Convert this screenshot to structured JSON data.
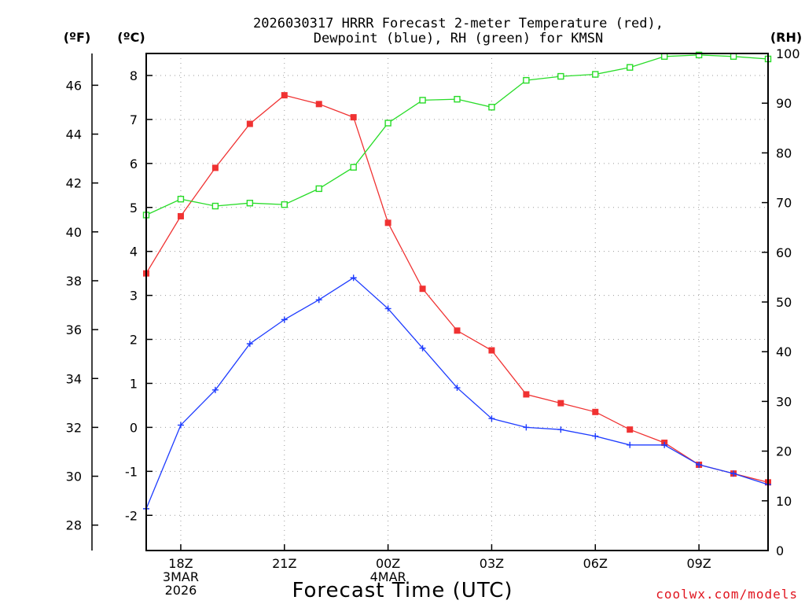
{
  "chart_data": {
    "type": "line",
    "title_line1": "2026030317 HRRR Forecast 2-meter Temperature (red),",
    "title_line2": "Dewpoint (blue), RH (green) for KMSN",
    "xlabel": "Forecast Time (UTC)",
    "credit": "coolwx.com/models",
    "units": {
      "fahrenheit": "(ºF)",
      "celsius": "(ºC)",
      "rh": "(RH)"
    },
    "x_hours": [
      17,
      18,
      19,
      20,
      21,
      22,
      23,
      24,
      25,
      26,
      27,
      28,
      29,
      30,
      31,
      32,
      33,
      34,
      35
    ],
    "xlim": [
      17,
      35
    ],
    "x_ticks": [
      {
        "hour": 18,
        "lines": [
          "18Z",
          "3MAR",
          "2026"
        ]
      },
      {
        "hour": 21,
        "lines": [
          "21Z"
        ]
      },
      {
        "hour": 24,
        "lines": [
          "00Z",
          "4MAR"
        ]
      },
      {
        "hour": 27,
        "lines": [
          "03Z"
        ]
      },
      {
        "hour": 30,
        "lines": [
          "06Z"
        ]
      },
      {
        "hour": 33,
        "lines": [
          "09Z"
        ]
      }
    ],
    "celsius_axis": {
      "lim": [
        -2.8,
        8.5
      ],
      "ticks": [
        "-2",
        "-1",
        "0",
        "1",
        "2",
        "3",
        "4",
        "5",
        "6",
        "7",
        "8"
      ]
    },
    "fahrenheit_axis": {
      "ticks": [
        "28",
        "30",
        "32",
        "34",
        "36",
        "38",
        "40",
        "42",
        "44",
        "46"
      ]
    },
    "rh_axis": {
      "lim": [
        0,
        100
      ],
      "ticks": [
        "0",
        "10",
        "20",
        "30",
        "40",
        "50",
        "60",
        "70",
        "80",
        "90",
        "100"
      ]
    },
    "series": [
      {
        "name": "Temperature",
        "axis": "celsius",
        "color": "#f03232",
        "marker": "filled-square",
        "values": [
          3.5,
          4.8,
          5.9,
          6.9,
          7.55,
          7.35,
          7.05,
          4.65,
          3.15,
          2.2,
          1.75,
          0.75,
          0.55,
          0.35,
          -0.05,
          -0.35,
          -0.85,
          -1.05,
          -1.25
        ]
      },
      {
        "name": "Dewpoint",
        "axis": "celsius",
        "color": "#1e3cff",
        "marker": "plus",
        "values": [
          -1.85,
          0.05,
          0.85,
          1.9,
          2.45,
          2.9,
          3.4,
          2.7,
          1.8,
          0.9,
          0.2,
          0.0,
          -0.05,
          -0.2,
          -0.4,
          -0.4,
          -0.85,
          -1.05,
          -1.3
        ]
      },
      {
        "name": "RH",
        "axis": "rh",
        "color": "#28dc28",
        "marker": "open-square",
        "values": [
          67.5,
          70.7,
          69.3,
          69.9,
          69.6,
          72.8,
          77.1,
          86.0,
          90.6,
          90.8,
          89.2,
          94.6,
          95.4,
          95.8,
          97.2,
          99.4,
          99.7,
          99.4,
          98.9
        ]
      }
    ]
  }
}
